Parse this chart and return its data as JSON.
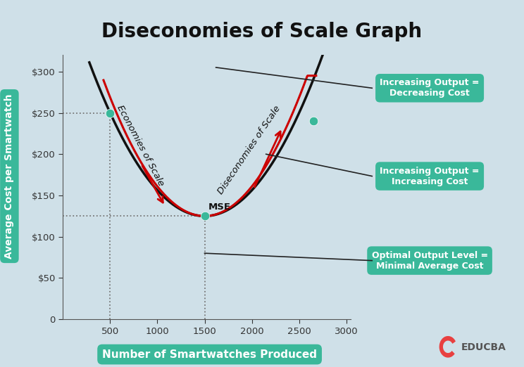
{
  "title": "Diseconomies of Scale Graph",
  "xlabel": "Number of Smartwatches Produced",
  "ylabel": "Average Cost per Smartwatch",
  "background_color": "#cfe0e8",
  "plot_bg_color": "#cfe0e8",
  "title_fontsize": 20,
  "xlabel_fontsize": 11,
  "ylabel_fontsize": 10,
  "x_ticks": [
    500,
    1000,
    1500,
    2000,
    2500,
    3000
  ],
  "y_ticks": [
    0,
    50,
    100,
    150,
    200,
    250,
    300
  ],
  "y_tick_labels": [
    "0",
    "$50",
    "$100",
    "$150",
    "$200",
    "$250",
    "$300"
  ],
  "xlim": [
    0,
    3050
  ],
  "ylim": [
    0,
    320
  ],
  "curve_color": "#111111",
  "red_curve_color": "#cc0000",
  "teal_color": "#3ab89a",
  "mse_x": 1500,
  "mse_y": 125,
  "left_dot_x": 500,
  "left_dot_y": 250,
  "right_dot_x": 2650,
  "right_dot_y": 240,
  "box1_text": "Increasing Output =\nDecreasing Cost",
  "box2_text": "Increasing Output =\nIncreasing Cost",
  "box3_text": "Optimal Output Level =\nMinimal Average Cost",
  "economies_label": "Economies of Scale",
  "diseconomies_label": "Diseconomies of Scale"
}
